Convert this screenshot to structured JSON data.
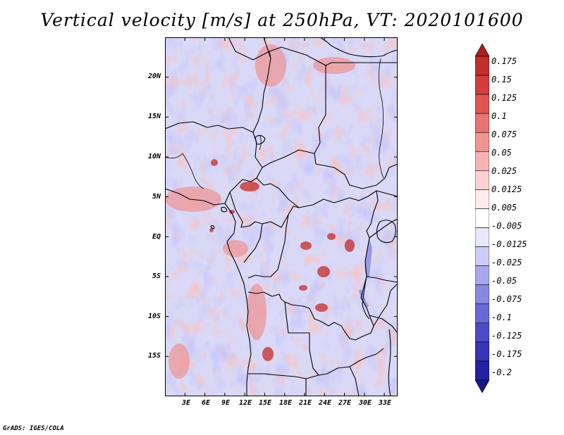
{
  "title": "Vertical velocity [m/s] at 250hPa, VT: 2020101600",
  "footer": "GrADS: IGES/COLA",
  "map": {
    "variable": "Vertical velocity",
    "units": "m/s",
    "level": "250hPa",
    "valid_time": "2020101600",
    "lat_labels": [
      "20N",
      "15N",
      "10N",
      "5N",
      "EQ",
      "5S",
      "10S",
      "15S"
    ],
    "lon_labels": [
      "3E",
      "6E",
      "9E",
      "12E",
      "15E",
      "18E",
      "21E",
      "24E",
      "27E",
      "30E",
      "33E"
    ],
    "lat_values": [
      20,
      15,
      10,
      5,
      0,
      -5,
      -10,
      -15
    ],
    "lon_values": [
      3,
      6,
      9,
      12,
      15,
      18,
      21,
      24,
      27,
      30,
      33
    ],
    "lon_range": [
      0,
      35
    ],
    "lat_range": [
      -20,
      25
    ]
  },
  "colorbar": {
    "labels": [
      "0.175",
      "0.15",
      "0.125",
      "0.1",
      "0.075",
      "0.05",
      "0.025",
      "0.0125",
      "0.005",
      "-0.005",
      "-0.0125",
      "-0.025",
      "-0.05",
      "-0.075",
      "-0.1",
      "-0.125",
      "-0.175",
      "-0.2"
    ],
    "colors": [
      "#ad1d1d",
      "#c22d2d",
      "#d33d3d",
      "#df5656",
      "#e77474",
      "#ef9393",
      "#f6b3b3",
      "#fad1d1",
      "#fdebeb",
      "#ffffff",
      "#e8e8fb",
      "#ccccf6",
      "#a8a8ee",
      "#8787e4",
      "#6868d8",
      "#4b4bc8",
      "#3535b5",
      "#2323a3",
      "#17178a"
    ]
  }
}
